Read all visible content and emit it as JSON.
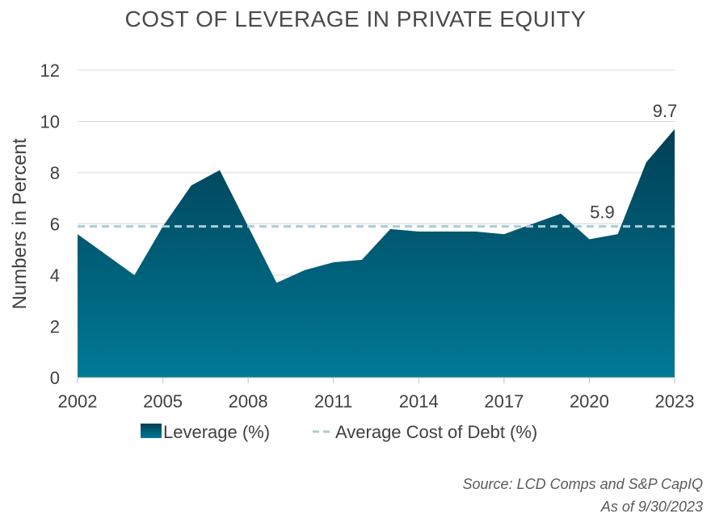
{
  "chart_data": {
    "type": "area",
    "title": "COST OF LEVERAGE IN PRIVATE EQUITY",
    "xlabel": "",
    "ylabel": "Numbers in Percent",
    "x": [
      2002,
      2003,
      2004,
      2005,
      2006,
      2007,
      2008,
      2009,
      2010,
      2011,
      2012,
      2013,
      2014,
      2015,
      2016,
      2017,
      2018,
      2019,
      2020,
      2021,
      2022,
      2023
    ],
    "series": [
      {
        "name": "Leverage (%)",
        "type": "area",
        "values": [
          5.6,
          4.8,
          4.0,
          5.9,
          7.5,
          8.1,
          5.9,
          3.7,
          4.2,
          4.5,
          4.6,
          5.8,
          5.7,
          5.7,
          5.7,
          5.6,
          6.0,
          6.4,
          5.4,
          5.6,
          8.4,
          9.7
        ]
      },
      {
        "name": "Average Cost of Debt (%)",
        "type": "line",
        "value": 5.9
      }
    ],
    "xticks": [
      "2002",
      "2005",
      "2008",
      "2011",
      "2014",
      "2017",
      "2020",
      "2023"
    ],
    "yticks": [
      "0",
      "2",
      "4",
      "6",
      "8",
      "10",
      "12"
    ],
    "ylim": [
      0,
      12
    ],
    "annotations": [
      "9.7",
      "5.9"
    ],
    "legend": [
      "Leverage (%)",
      "Average Cost of Debt (%)"
    ],
    "legend_position": "bottom",
    "grid": true,
    "colors": {
      "area_top": "#003f55",
      "area_bottom": "#007a96",
      "avg_line": "#a8cdd6",
      "grid": "#d9d9d9",
      "text": "#404040"
    }
  },
  "source": "Source: LCD Comps and S&P CapIQ",
  "as_of": "As of 9/30/2023"
}
